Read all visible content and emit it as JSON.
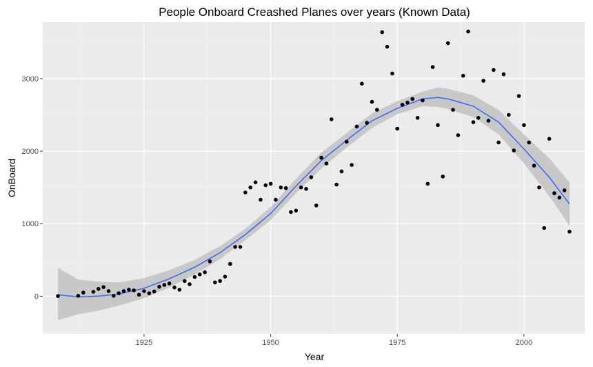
{
  "chart_data": {
    "type": "scatter",
    "title": "People Onboard Creashed Planes over years (Known Data)",
    "xlabel": "Year",
    "ylabel": "OnBoard",
    "xlim": [
      1905,
      2012
    ],
    "ylim": [
      -520,
      3780
    ],
    "x_ticks": [
      1925,
      1950,
      1975,
      2000
    ],
    "x_tick_labels": [
      "1925",
      "1950",
      "1975",
      "2000"
    ],
    "y_ticks": [
      0,
      1000,
      2000,
      3000
    ],
    "y_tick_labels": [
      "0",
      "1000",
      "2000",
      "3000"
    ],
    "grid": true,
    "background": "#ebebeb",
    "point_color": "#000000",
    "smooth_color": "#3366ff",
    "band_color": "#c4c4c4",
    "points": [
      {
        "x": 1908,
        "y": 1
      },
      {
        "x": 1912,
        "y": 5
      },
      {
        "x": 1913,
        "y": 50
      },
      {
        "x": 1915,
        "y": 60
      },
      {
        "x": 1916,
        "y": 100
      },
      {
        "x": 1917,
        "y": 125
      },
      {
        "x": 1918,
        "y": 70
      },
      {
        "x": 1919,
        "y": 5
      },
      {
        "x": 1920,
        "y": 40
      },
      {
        "x": 1921,
        "y": 70
      },
      {
        "x": 1922,
        "y": 90
      },
      {
        "x": 1923,
        "y": 80
      },
      {
        "x": 1924,
        "y": 20
      },
      {
        "x": 1925,
        "y": 70
      },
      {
        "x": 1926,
        "y": 40
      },
      {
        "x": 1927,
        "y": 65
      },
      {
        "x": 1928,
        "y": 130
      },
      {
        "x": 1929,
        "y": 155
      },
      {
        "x": 1930,
        "y": 175
      },
      {
        "x": 1931,
        "y": 120
      },
      {
        "x": 1932,
        "y": 90
      },
      {
        "x": 1933,
        "y": 210
      },
      {
        "x": 1934,
        "y": 165
      },
      {
        "x": 1935,
        "y": 265
      },
      {
        "x": 1936,
        "y": 300
      },
      {
        "x": 1937,
        "y": 330
      },
      {
        "x": 1938,
        "y": 480
      },
      {
        "x": 1939,
        "y": 190
      },
      {
        "x": 1940,
        "y": 210
      },
      {
        "x": 1941,
        "y": 270
      },
      {
        "x": 1942,
        "y": 445
      },
      {
        "x": 1943,
        "y": 680
      },
      {
        "x": 1944,
        "y": 680
      },
      {
        "x": 1945,
        "y": 1430
      },
      {
        "x": 1946,
        "y": 1500
      },
      {
        "x": 1947,
        "y": 1570
      },
      {
        "x": 1948,
        "y": 1330
      },
      {
        "x": 1949,
        "y": 1530
      },
      {
        "x": 1950,
        "y": 1550
      },
      {
        "x": 1951,
        "y": 1330
      },
      {
        "x": 1952,
        "y": 1500
      },
      {
        "x": 1953,
        "y": 1490
      },
      {
        "x": 1954,
        "y": 1160
      },
      {
        "x": 1955,
        "y": 1180
      },
      {
        "x": 1956,
        "y": 1500
      },
      {
        "x": 1957,
        "y": 1480
      },
      {
        "x": 1958,
        "y": 1640
      },
      {
        "x": 1959,
        "y": 1250
      },
      {
        "x": 1960,
        "y": 1910
      },
      {
        "x": 1961,
        "y": 1830
      },
      {
        "x": 1962,
        "y": 2440
      },
      {
        "x": 1963,
        "y": 1540
      },
      {
        "x": 1964,
        "y": 1720
      },
      {
        "x": 1965,
        "y": 2130
      },
      {
        "x": 1966,
        "y": 1810
      },
      {
        "x": 1967,
        "y": 2340
      },
      {
        "x": 1968,
        "y": 2930
      },
      {
        "x": 1969,
        "y": 2390
      },
      {
        "x": 1970,
        "y": 2680
      },
      {
        "x": 1971,
        "y": 2570
      },
      {
        "x": 1972,
        "y": 3640
      },
      {
        "x": 1973,
        "y": 3440
      },
      {
        "x": 1974,
        "y": 3070
      },
      {
        "x": 1975,
        "y": 2310
      },
      {
        "x": 1976,
        "y": 2640
      },
      {
        "x": 1977,
        "y": 2670
      },
      {
        "x": 1978,
        "y": 2720
      },
      {
        "x": 1979,
        "y": 2460
      },
      {
        "x": 1980,
        "y": 2700
      },
      {
        "x": 1981,
        "y": 1550
      },
      {
        "x": 1982,
        "y": 3160
      },
      {
        "x": 1983,
        "y": 2360
      },
      {
        "x": 1984,
        "y": 1650
      },
      {
        "x": 1985,
        "y": 3490
      },
      {
        "x": 1986,
        "y": 2570
      },
      {
        "x": 1987,
        "y": 2220
      },
      {
        "x": 1988,
        "y": 3040
      },
      {
        "x": 1989,
        "y": 3650
      },
      {
        "x": 1990,
        "y": 2400
      },
      {
        "x": 1991,
        "y": 2460
      },
      {
        "x": 1992,
        "y": 2970
      },
      {
        "x": 1993,
        "y": 2420
      },
      {
        "x": 1994,
        "y": 3120
      },
      {
        "x": 1995,
        "y": 2120
      },
      {
        "x": 1996,
        "y": 3060
      },
      {
        "x": 1997,
        "y": 2500
      },
      {
        "x": 1998,
        "y": 2010
      },
      {
        "x": 1999,
        "y": 2760
      },
      {
        "x": 2000,
        "y": 2360
      },
      {
        "x": 2001,
        "y": 2120
      },
      {
        "x": 2002,
        "y": 1800
      },
      {
        "x": 2003,
        "y": 1500
      },
      {
        "x": 2004,
        "y": 940
      },
      {
        "x": 2005,
        "y": 2170
      },
      {
        "x": 2006,
        "y": 1420
      },
      {
        "x": 2007,
        "y": 1360
      },
      {
        "x": 2008,
        "y": 1460
      },
      {
        "x": 2009,
        "y": 890
      }
    ],
    "smooth": {
      "x": [
        1908,
        1912,
        1916,
        1920,
        1925,
        1930,
        1935,
        1940,
        1945,
        1950,
        1955,
        1960,
        1965,
        1970,
        1975,
        1980,
        1983,
        1985,
        1990,
        1995,
        2000,
        2005,
        2009
      ],
      "y": [
        20,
        -10,
        0,
        30,
        110,
        240,
        400,
        600,
        850,
        1140,
        1520,
        1870,
        2150,
        2420,
        2590,
        2720,
        2740,
        2720,
        2620,
        2400,
        2030,
        1640,
        1270
      ],
      "lower": [
        -330,
        -250,
        -200,
        -130,
        -30,
        120,
        300,
        510,
        770,
        1050,
        1420,
        1760,
        2050,
        2320,
        2510,
        2620,
        2610,
        2580,
        2470,
        2230,
        1830,
        1380,
        970
      ],
      "upper": [
        390,
        230,
        200,
        190,
        250,
        360,
        500,
        690,
        930,
        1230,
        1620,
        1980,
        2250,
        2520,
        2690,
        2820,
        2880,
        2860,
        2770,
        2570,
        2230,
        1900,
        1570
      ]
    }
  }
}
